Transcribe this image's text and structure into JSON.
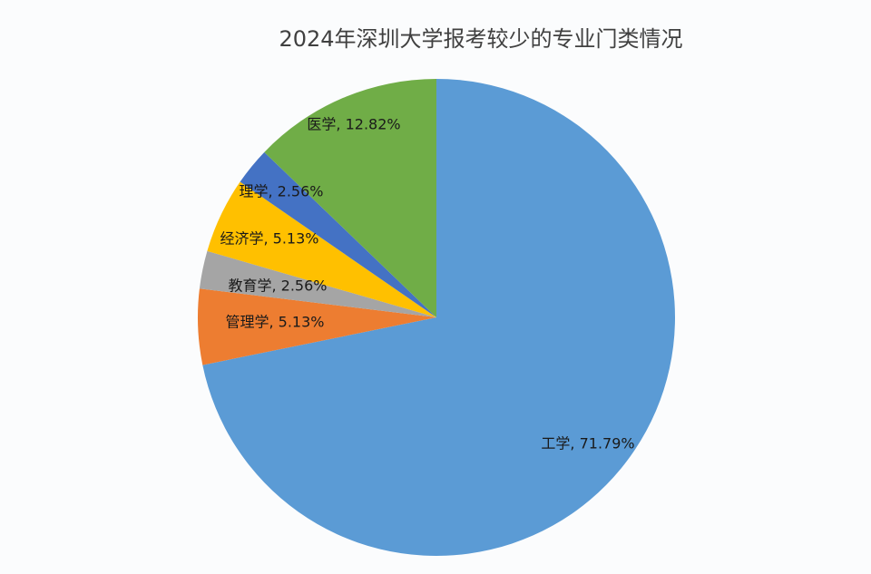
{
  "chart_data": {
    "type": "pie",
    "title": "2024年深圳大学报考较少的专业门类情况",
    "values": [
      71.79,
      5.13,
      2.56,
      5.13,
      2.56,
      12.82
    ],
    "value_labels": [
      "工学, 71.79%",
      "管理学, 5.13%",
      "教育学, 2.56%",
      "经济学, 5.13%",
      "理学, 2.56%",
      "医学, 12.82%"
    ],
    "colors": [
      "#5b9bd5",
      "#ed7d31",
      "#a5a5a5",
      "#ffc000",
      "#4472c4",
      "#70ad47"
    ]
  }
}
